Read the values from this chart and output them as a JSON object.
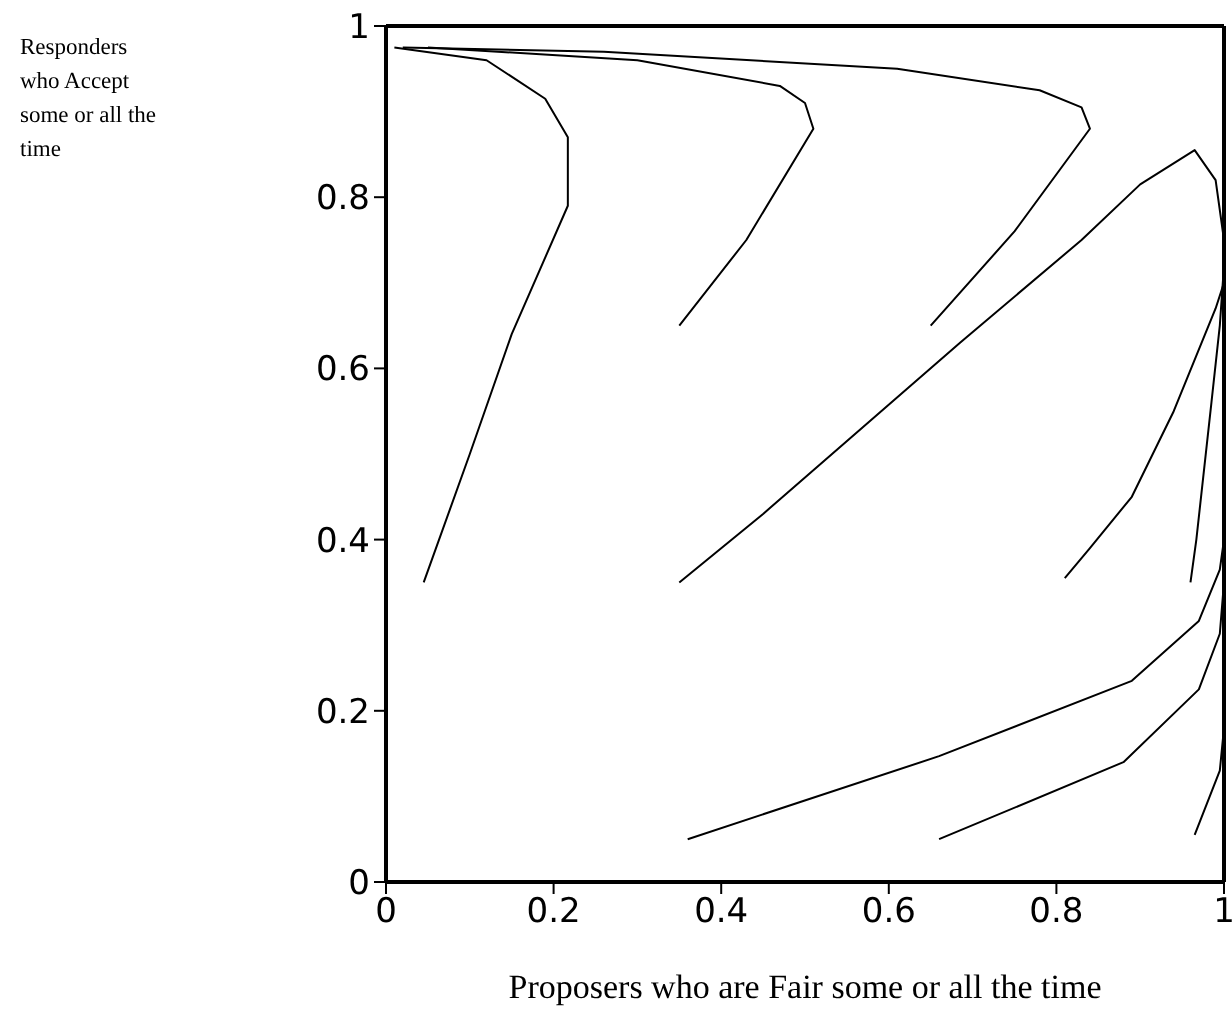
{
  "chart_data": {
    "type": "line",
    "xlabel": "Proposers who are Fair some or all the time",
    "annotations": [
      "Responders who Accept some or all the time"
    ],
    "xlim": [
      0,
      1
    ],
    "ylim": [
      0,
      1
    ],
    "xticks": [
      0,
      0.2,
      0.4,
      0.6,
      0.8,
      1
    ],
    "yticks": [
      0,
      0.2,
      0.4,
      0.6,
      0.8,
      1
    ],
    "legend": false,
    "marker": "none",
    "line_style": "solid",
    "series": [
      {
        "color": "#000000",
        "x": [
          0.045,
          0.1,
          0.15,
          0.217,
          0.217,
          0.19,
          0.12,
          0.01
        ],
        "values": [
          0.35,
          0.5,
          0.64,
          0.79,
          0.87,
          0.915,
          0.96,
          0.975
        ]
      },
      {
        "color": "#000000",
        "x": [
          0.35,
          0.43,
          0.51,
          0.5,
          0.47,
          0.3,
          0.05
        ],
        "values": [
          0.65,
          0.75,
          0.88,
          0.91,
          0.93,
          0.96,
          0.975
        ]
      },
      {
        "color": "#000000",
        "x": [
          0.65,
          0.75,
          0.84,
          0.83,
          0.78,
          0.61,
          0.26,
          0.02
        ],
        "values": [
          0.65,
          0.76,
          0.88,
          0.905,
          0.925,
          0.95,
          0.97,
          0.975
        ]
      },
      {
        "color": "#000000",
        "x": [
          0.35,
          0.45,
          0.685,
          0.83,
          0.9,
          0.965,
          0.99,
          1,
          1
        ],
        "values": [
          0.35,
          0.43,
          0.63,
          0.75,
          0.815,
          0.855,
          0.82,
          0.75,
          0.6
        ]
      },
      {
        "color": "#000000",
        "x": [
          0.81,
          0.84,
          0.89,
          0.94,
          0.99,
          1
        ],
        "values": [
          0.355,
          0.39,
          0.45,
          0.55,
          0.67,
          0.7
        ]
      },
      {
        "color": "#000000",
        "x": [
          0.96,
          0.967,
          0.985,
          0.995,
          1
        ],
        "values": [
          0.35,
          0.4,
          0.56,
          0.65,
          0.72
        ]
      },
      {
        "color": "#000000",
        "x": [
          0.36,
          0.66,
          0.89,
          0.97,
          0.995,
          1
        ],
        "values": [
          0.05,
          0.147,
          0.235,
          0.305,
          0.365,
          0.4
        ]
      },
      {
        "color": "#000000",
        "x": [
          0.66,
          0.88,
          0.97,
          0.995,
          1
        ],
        "values": [
          0.05,
          0.14,
          0.225,
          0.29,
          0.35
        ]
      },
      {
        "color": "#000000",
        "x": [
          0.965,
          0.995,
          1,
          1
        ],
        "values": [
          0.055,
          0.13,
          0.18,
          0.33
        ]
      }
    ]
  }
}
